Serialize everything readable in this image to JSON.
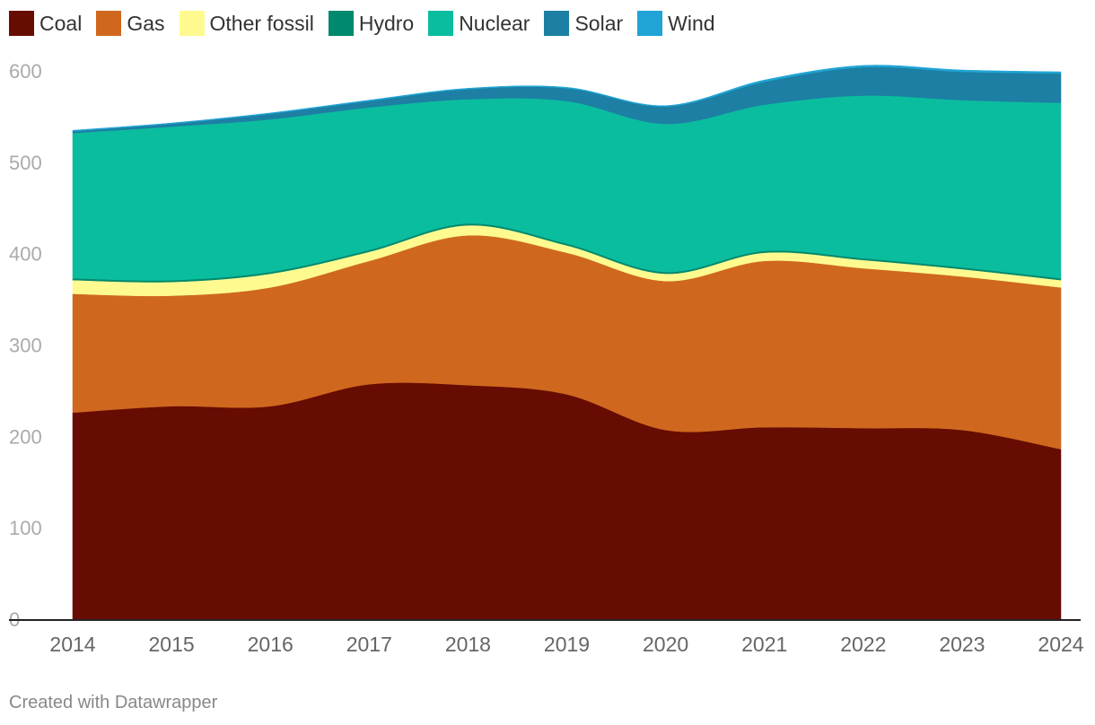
{
  "legend": [
    {
      "label": "Coal",
      "color": "#670c02"
    },
    {
      "label": "Gas",
      "color": "#cf681e"
    },
    {
      "label": "Other fossil",
      "color": "#fffa90"
    },
    {
      "label": "Hydro",
      "color": "#00896d"
    },
    {
      "label": "Nuclear",
      "color": "#0abd9f"
    },
    {
      "label": "Solar",
      "color": "#1c7fa3"
    },
    {
      "label": "Wind",
      "color": "#1fa4d5"
    }
  ],
  "credit": "Created with Datawrapper",
  "chart_data": {
    "type": "area",
    "stacked": true,
    "title": "",
    "xlabel": "",
    "ylabel": "",
    "x": [
      2014,
      2015,
      2016,
      2017,
      2018,
      2019,
      2020,
      2021,
      2022,
      2023,
      2024
    ],
    "xtick_labels": [
      "2014",
      "2015",
      "2016",
      "2017",
      "2018",
      "2019",
      "2020",
      "2021",
      "2022",
      "2023",
      "2024"
    ],
    "ylim": [
      0,
      600
    ],
    "yticks": [
      0,
      100,
      200,
      300,
      400,
      500,
      600
    ],
    "ytick_labels": [
      "0",
      "100",
      "200",
      "300",
      "400",
      "500",
      "600"
    ],
    "series": [
      {
        "name": "Coal",
        "color": "#670c02",
        "values": [
          226,
          233,
          233,
          257,
          256,
          246,
          207,
          210,
          209,
          207,
          186
        ]
      },
      {
        "name": "Gas",
        "color": "#cf681e",
        "values": [
          130,
          121,
          130,
          135,
          164,
          155,
          163,
          182,
          175,
          168,
          177
        ]
      },
      {
        "name": "Other fossil",
        "color": "#fffa90",
        "values": [
          15,
          15,
          15,
          10,
          11,
          8,
          8,
          9,
          9,
          8,
          8
        ]
      },
      {
        "name": "Hydro",
        "color": "#00896d",
        "values": [
          2,
          2,
          2,
          2,
          2,
          2,
          2,
          2,
          2,
          2,
          2
        ]
      },
      {
        "name": "Nuclear",
        "color": "#0abd9f",
        "values": [
          159,
          168,
          167,
          156,
          136,
          156,
          162,
          160,
          178,
          183,
          192
        ]
      },
      {
        "name": "Solar",
        "color": "#1c7fa3",
        "values": [
          2,
          3,
          6,
          7,
          11,
          14,
          19,
          25,
          31,
          31,
          32
        ]
      },
      {
        "name": "Wind",
        "color": "#1fa4d5",
        "values": [
          1,
          1,
          1,
          1,
          1,
          1,
          1,
          2,
          2,
          2,
          2
        ]
      }
    ]
  }
}
